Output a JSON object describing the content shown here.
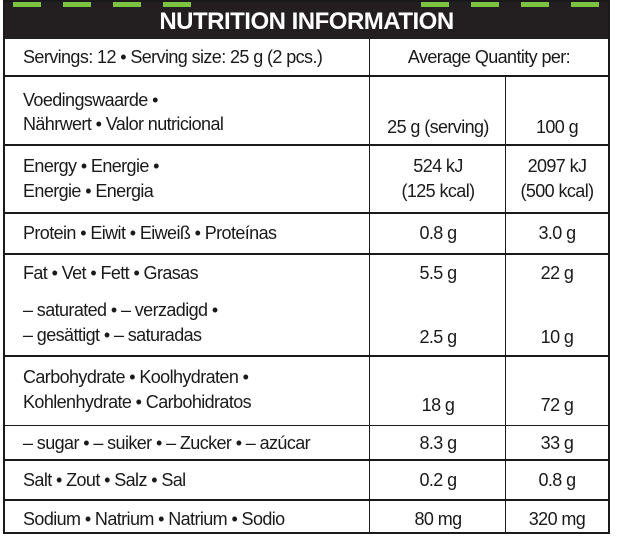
{
  "header": {
    "title": "NUTRITION INFORMATION",
    "accent_color": "#7dc242",
    "bg_color": "#231f20"
  },
  "servings_line": "Servings: 12 • Serving size: 25 g (2 pcs.)",
  "average_quantity_label": "Average Quantity per:",
  "column_header": {
    "label_line1": "Voedingswaarde •",
    "label_line2": "Nährwert • Valor nutricional",
    "col1": "25 g (serving)",
    "col2": "100 g"
  },
  "rows": {
    "energy": {
      "label_line1": "Energy • Energie •",
      "label_line2": "Energie • Energia",
      "v1_kj": "524 kJ",
      "v1_kcal": "(125 kcal)",
      "v2_kj": "2097 kJ",
      "v2_kcal": "(500 kcal)"
    },
    "protein": {
      "label": "Protein • Eiwit • Eiweiß • Proteínas",
      "v1": "0.8 g",
      "v2": "3.0 g"
    },
    "fat": {
      "label": "Fat • Vet • Fett • Grasas",
      "v1": "5.5 g",
      "v2": "22 g"
    },
    "saturated": {
      "label_line1": "– saturated • – verzadigd •",
      "label_line2": "– gesättigt • – saturadas",
      "v1": "2.5 g",
      "v2": "10 g"
    },
    "carbohydrate": {
      "label_line1": "Carbohydrate • Koolhydraten •",
      "label_line2": "Kohlenhydrate • Carbohidratos",
      "v1": "18 g",
      "v2": "72 g"
    },
    "sugar": {
      "label": "– sugar • – suiker • – Zucker • – azúcar",
      "v1": "8.3 g",
      "v2": "33 g"
    },
    "salt": {
      "label": "Salt • Zout • Salz • Sal",
      "v1": "0.2 g",
      "v2": "0.8 g"
    },
    "sodium": {
      "label": "Sodium • Natrium • Natrium • Sodio",
      "v1": "80 mg",
      "v2": "320 mg"
    }
  }
}
